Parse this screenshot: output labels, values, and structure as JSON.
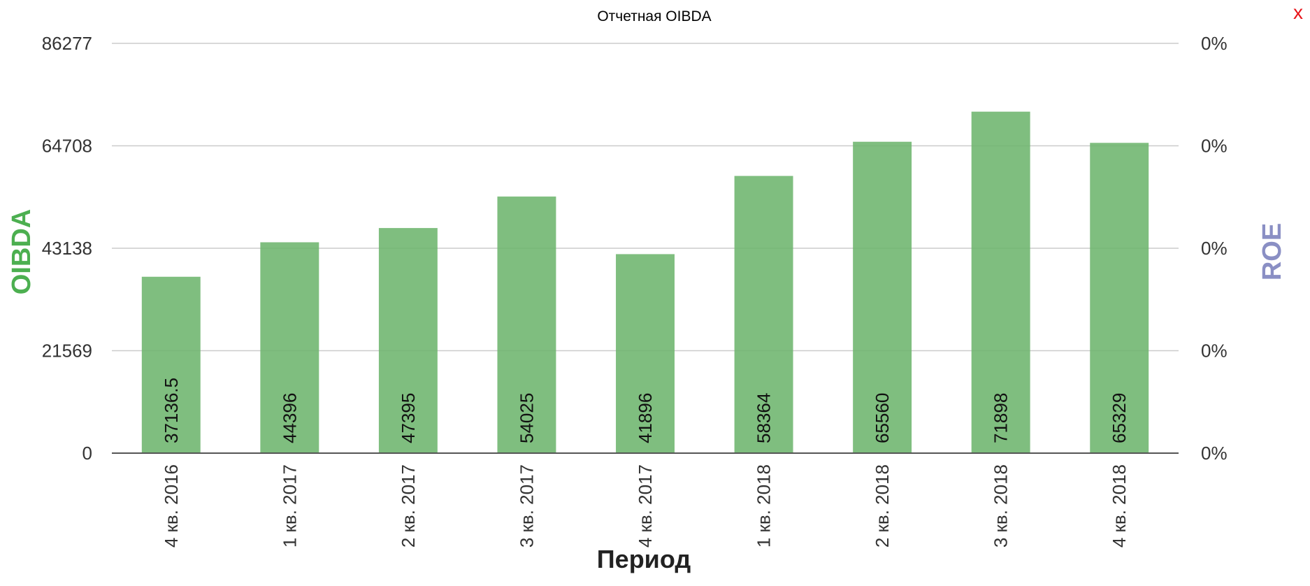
{
  "close_label": "x",
  "colors": {
    "bar": "#6db56d",
    "bar_opacity": 0.88,
    "left_axis_title": "#4caf50",
    "right_axis_title": "#8a8fc4",
    "grid": "#cccccc",
    "axis": "#555555",
    "text": "#333333",
    "close": "#e8141a"
  },
  "chart_data": {
    "type": "bar",
    "title": "Отчетная OIBDA",
    "xlabel": "Период",
    "ylabel": "OIBDA",
    "y2label": "ROE",
    "categories": [
      "4 кв. 2016",
      "1 кв. 2017",
      "2 кв. 2017",
      "3 кв. 2017",
      "4 кв. 2017",
      "1 кв. 2018",
      "2 кв. 2018",
      "3 кв. 2018",
      "4 кв. 2018"
    ],
    "values": [
      37136.5,
      44396,
      47395,
      54025,
      41896,
      58364,
      65560,
      71898,
      65329
    ],
    "data_labels": [
      "37136.5",
      "44396",
      "47395",
      "54025",
      "41896",
      "58364",
      "65560",
      "71898",
      "65329"
    ],
    "ylim": [
      0,
      86277
    ],
    "yticks": [
      0,
      21569,
      43138,
      64708,
      86277
    ],
    "y2ticks": [
      "0%",
      "0%",
      "0%",
      "0%",
      "0%"
    ],
    "grid": true,
    "legend": "none"
  }
}
